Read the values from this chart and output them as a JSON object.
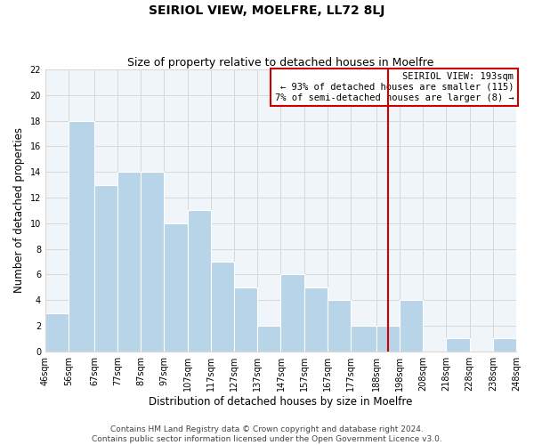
{
  "title": "SEIRIOL VIEW, MOELFRE, LL72 8LJ",
  "subtitle": "Size of property relative to detached houses in Moelfre",
  "xlabel": "Distribution of detached houses by size in Moelfre",
  "ylabel": "Number of detached properties",
  "bar_edges": [
    46,
    56,
    67,
    77,
    87,
    97,
    107,
    117,
    127,
    137,
    147,
    157,
    167,
    177,
    188,
    198,
    208,
    218,
    228,
    238,
    248
  ],
  "bar_heights": [
    3,
    18,
    13,
    14,
    14,
    10,
    11,
    7,
    5,
    2,
    6,
    5,
    4,
    2,
    2,
    4,
    0,
    1,
    0,
    1
  ],
  "bar_color": "#b8d4e8",
  "grid_color": "#d8d8d8",
  "vline_x": 193,
  "vline_color": "#cc0000",
  "ylim": [
    0,
    22
  ],
  "annotation_title": "SEIRIOL VIEW: 193sqm",
  "annotation_line1": "← 93% of detached houses are smaller (115)",
  "annotation_line2": "7% of semi-detached houses are larger (8) →",
  "annotation_box_facecolor": "#ffffff",
  "annotation_box_edgecolor": "#cc0000",
  "tick_labels": [
    "46sqm",
    "56sqm",
    "67sqm",
    "77sqm",
    "87sqm",
    "97sqm",
    "107sqm",
    "117sqm",
    "127sqm",
    "137sqm",
    "147sqm",
    "157sqm",
    "167sqm",
    "177sqm",
    "188sqm",
    "198sqm",
    "208sqm",
    "218sqm",
    "228sqm",
    "238sqm",
    "248sqm"
  ],
  "footer1": "Contains HM Land Registry data © Crown copyright and database right 2024.",
  "footer2": "Contains public sector information licensed under the Open Government Licence v3.0.",
  "title_fontsize": 10,
  "subtitle_fontsize": 9,
  "axis_label_fontsize": 8.5,
  "tick_fontsize": 7,
  "annotation_fontsize": 7.5,
  "footer_fontsize": 6.5
}
